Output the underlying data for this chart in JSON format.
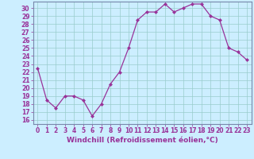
{
  "x": [
    0,
    1,
    2,
    3,
    4,
    5,
    6,
    7,
    8,
    9,
    10,
    11,
    12,
    13,
    14,
    15,
    16,
    17,
    18,
    19,
    20,
    21,
    22,
    23
  ],
  "y": [
    22.5,
    18.5,
    17.5,
    19.0,
    19.0,
    18.5,
    16.5,
    18.0,
    20.5,
    22.0,
    25.0,
    28.5,
    29.5,
    29.5,
    30.5,
    29.5,
    30.0,
    30.5,
    30.5,
    29.0,
    28.5,
    25.0,
    24.5,
    23.5
  ],
  "line_color": "#993399",
  "marker": "D",
  "marker_size": 2.5,
  "marker_color": "#993399",
  "bg_color": "#cceeff",
  "grid_color": "#99cccc",
  "xlabel": "Windchill (Refroidissement éolien,°C)",
  "xlabel_fontsize": 6.5,
  "xlim": [
    -0.5,
    23.5
  ],
  "ylim": [
    15.5,
    30.8
  ],
  "yticks": [
    16,
    17,
    18,
    19,
    20,
    21,
    22,
    23,
    24,
    25,
    26,
    27,
    28,
    29,
    30
  ],
  "xticks": [
    0,
    1,
    2,
    3,
    4,
    5,
    6,
    7,
    8,
    9,
    10,
    11,
    12,
    13,
    14,
    15,
    16,
    17,
    18,
    19,
    20,
    21,
    22,
    23
  ],
  "tick_fontsize": 5.5,
  "spine_color": "#7788aa",
  "axis_label_color": "#993399",
  "tick_color": "#993399"
}
